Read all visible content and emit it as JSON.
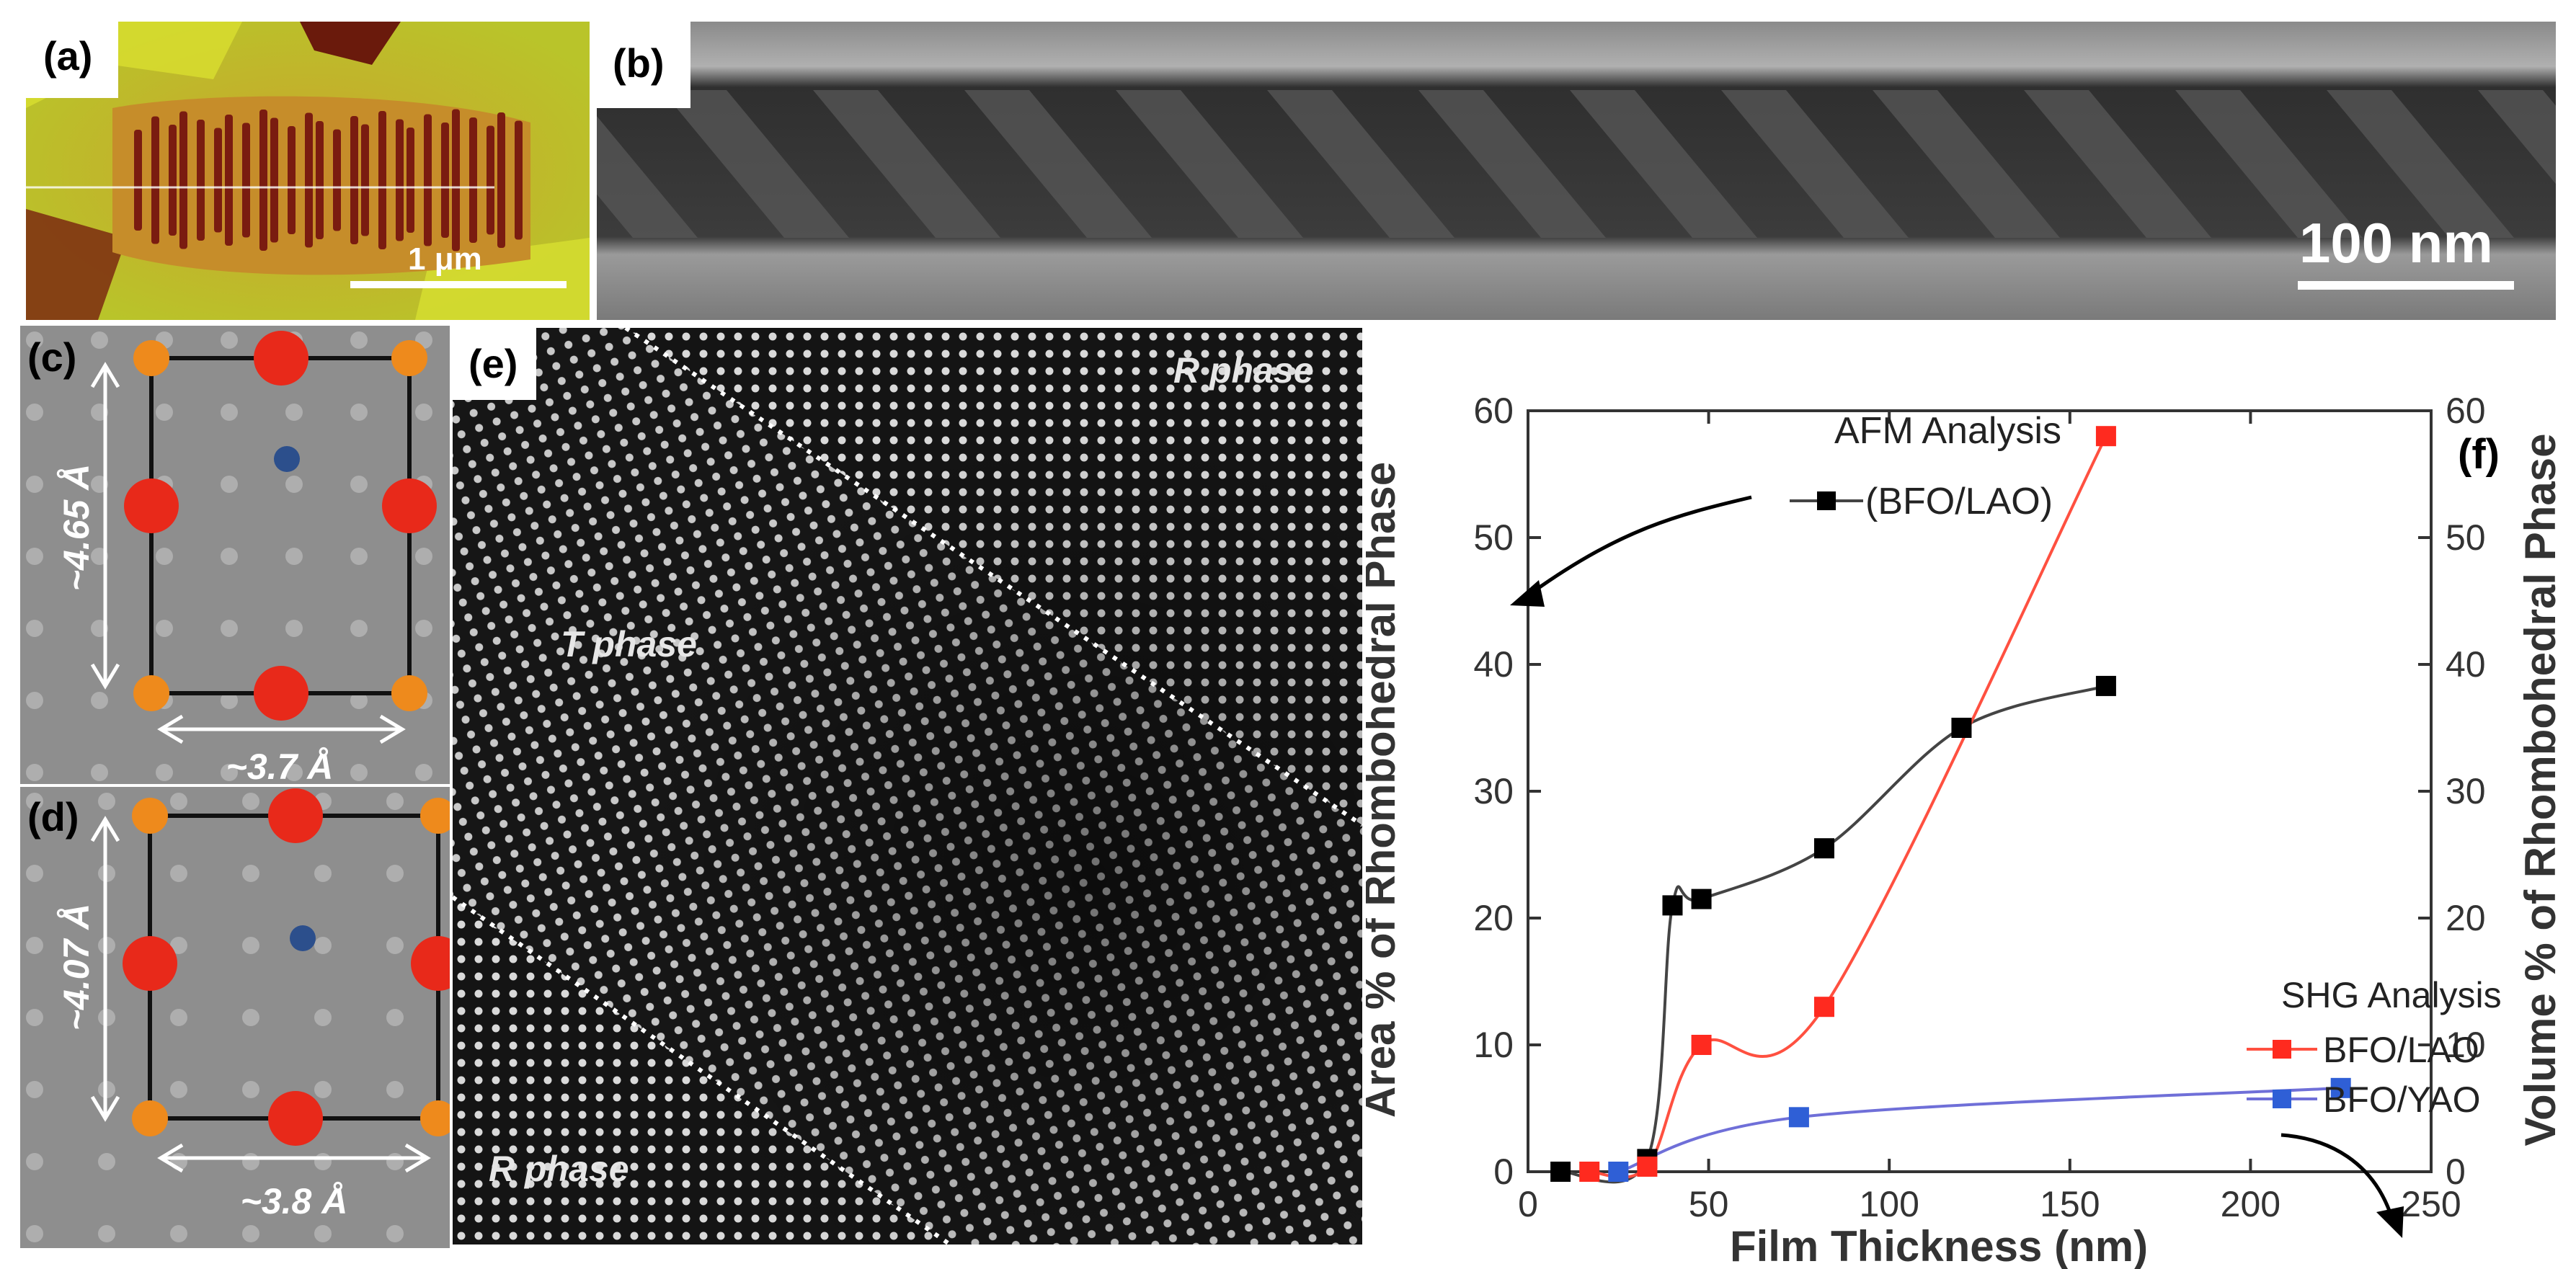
{
  "panels": {
    "a": {
      "label": "(a)",
      "scale_bar": "1 μm"
    },
    "b": {
      "label": "(b)",
      "scale_bar": "100 nm"
    },
    "c": {
      "label": "(c)",
      "vertical_dim": "~4.65 Å",
      "horizontal_dim": "~3.7 Å"
    },
    "d": {
      "label": "(d)",
      "vertical_dim": "~4.07 Å",
      "horizontal_dim": "~3.8 Å"
    },
    "e": {
      "label": "(e)",
      "region_top": "R phase",
      "region_mid": "T phase",
      "region_bottom": "R phase"
    },
    "f": {
      "label": "(f)"
    }
  },
  "colors": {
    "afm": "#000000",
    "shg_lao": "#ff2a1f",
    "shg_yao": "#2f5fd6",
    "afm_curve": "#444444",
    "lao_curve": "#ff5040",
    "yao_curve": "#6f6fd8"
  },
  "chart_data": {
    "type": "scatter",
    "xlabel": "Film Thickness (nm)",
    "ylabel": "Area % of Rhombohedral Phase",
    "ylabel_right": "Volume % of Rhombohedral Phase",
    "xlim": [
      0,
      250
    ],
    "ylim": [
      0,
      60
    ],
    "x_ticks": [
      "0",
      "50",
      "100",
      "150",
      "200",
      "250"
    ],
    "y_ticks": [
      "0",
      "10",
      "20",
      "30",
      "40",
      "50",
      "60"
    ],
    "annotations": {
      "afm_title": "AFM Analysis",
      "afm_entry": "(BFO/LAO)",
      "shg_title": "SHG Analysis",
      "shg_lao": "BFO/LAO",
      "shg_yao": "BFO/YAO"
    },
    "series": [
      {
        "name": "(BFO/LAO)",
        "group": "AFM Analysis",
        "axis": "left",
        "x": [
          9,
          33,
          40,
          48,
          82,
          120,
          160
        ],
        "y": [
          0,
          1,
          21,
          21.5,
          25.5,
          35,
          38.3
        ]
      },
      {
        "name": "BFO/LAO",
        "group": "SHG Analysis",
        "axis": "right",
        "x": [
          17,
          33,
          48,
          82,
          160
        ],
        "y": [
          0,
          0.4,
          10,
          13,
          58
        ]
      },
      {
        "name": "BFO/YAO",
        "group": "SHG Analysis",
        "axis": "right",
        "x": [
          25,
          75,
          225
        ],
        "y": [
          0,
          4.3,
          6.6
        ]
      }
    ]
  }
}
